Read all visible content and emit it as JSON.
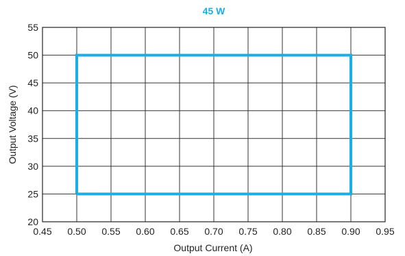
{
  "chart_data": {
    "type": "line",
    "title": "45 W",
    "xlabel": "Output Current (A)",
    "ylabel": "Output Voltage (V)",
    "xlim": [
      0.45,
      0.95
    ],
    "ylim": [
      20,
      55
    ],
    "x_ticks": [
      "0.45",
      "0.50",
      "0.55",
      "0.60",
      "0.65",
      "0.70",
      "0.75",
      "0.80",
      "0.85",
      "0.90",
      "0.95"
    ],
    "y_ticks": [
      "20",
      "25",
      "30",
      "35",
      "40",
      "45",
      "50",
      "55"
    ],
    "grid": true,
    "legend": "none",
    "series": [
      {
        "color": "#1aaee6",
        "points": [
          {
            "x": 0.5,
            "y": 25
          },
          {
            "x": 0.5,
            "y": 50
          },
          {
            "x": 0.9,
            "y": 50
          },
          {
            "x": 0.9,
            "y": 25
          },
          {
            "x": 0.5,
            "y": 25
          }
        ]
      }
    ]
  }
}
